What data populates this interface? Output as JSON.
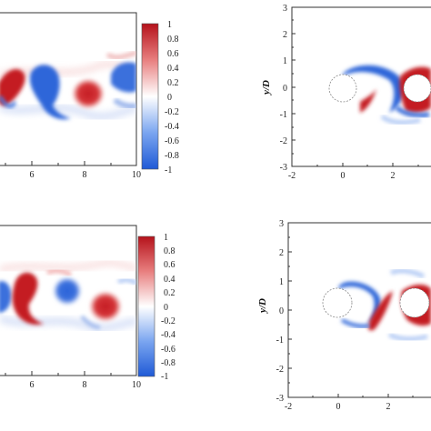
{
  "colorbar": {
    "labels": [
      "1",
      "0.8",
      "0.6",
      "0.4",
      "0.2",
      "0",
      "-0.2",
      "-0.4",
      "-0.6",
      "-0.8",
      "-1"
    ],
    "colors": {
      "max": "#c01c28",
      "mid": "#ffffff",
      "min": "#2c64d8"
    }
  },
  "panels": {
    "top_left": {
      "x_ticks": [
        "6",
        "8",
        "10"
      ]
    },
    "bottom_left": {
      "x_ticks": [
        "6",
        "8",
        "10"
      ]
    },
    "top_right": {
      "y_label": "y/D",
      "y_ticks": [
        "3",
        "2",
        "1",
        "0",
        "-1",
        "-2",
        "-3"
      ],
      "x_ticks": [
        "-2",
        "0",
        "2"
      ]
    },
    "bottom_right": {
      "y_label": "y/D",
      "y_ticks": [
        "3",
        "2",
        "1",
        "0",
        "-1",
        "-2",
        "-3"
      ],
      "x_ticks": [
        "-2",
        "0",
        "2"
      ]
    }
  }
}
